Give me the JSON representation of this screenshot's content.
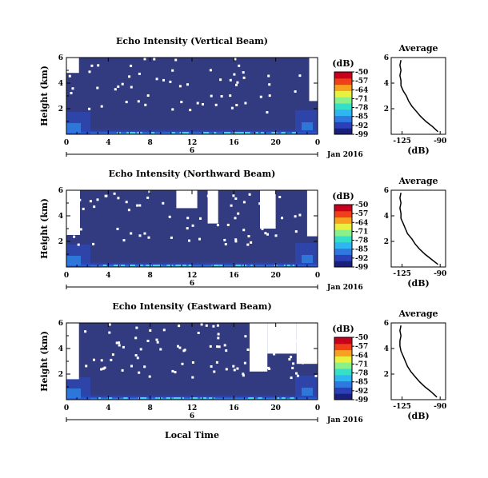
{
  "chart_data": {
    "type": "heatmap",
    "colorbar": {
      "label": "(dB)",
      "ticks": [
        "-50",
        "-57",
        "-64",
        "-71",
        "-78",
        "-85",
        "-92",
        "-99"
      ],
      "range": [
        -99,
        -50
      ],
      "colors": [
        "#1a1f7a",
        "#2a3fb8",
        "#2f78e0",
        "#2fb6f0",
        "#36e0c8",
        "#8af08a",
        "#e8f040",
        "#f8a020",
        "#f0401a",
        "#c8001e"
      ]
    },
    "date_label": "Jan 2016",
    "date_day": "6",
    "xlabel": "Local Time",
    "xticks": [
      "0",
      "4",
      "8",
      "12",
      "16",
      "20",
      "0"
    ],
    "xrange_hours": [
      0,
      24
    ],
    "ylabel": "Height (km)",
    "yticks": [
      "6",
      "4",
      "2"
    ],
    "yrange_km": [
      0,
      6
    ],
    "panels": [
      {
        "title": "Echo Intensity (Vertical Beam)",
        "avg_title": "Average",
        "avg_xlabel": "(dB)",
        "avg_xticks": [
          "-125",
          "-90"
        ],
        "avg_yticks": [
          "6",
          "4",
          "2"
        ],
        "avg_profile": {
          "height_km": [
            0.2,
            0.6,
            1.0,
            1.4,
            1.8,
            2.2,
            2.6,
            3.0,
            3.4,
            3.8,
            4.2,
            4.6,
            5.0,
            5.4,
            5.8
          ],
          "db": [
            -92,
            -97,
            -103,
            -108,
            -112,
            -116,
            -119,
            -121,
            -124,
            -126,
            -126,
            -127,
            -126,
            -127,
            -126
          ]
        },
        "white_regions_hours": [
          [
            23.2,
            24,
            2.6,
            6.0
          ],
          [
            0,
            1.2,
            4.8,
            6.0
          ]
        ]
      },
      {
        "title": "Echo Intensity (Northward Beam)",
        "avg_title": "Average",
        "avg_xlabel": "(dB)",
        "avg_xticks": [
          "-125",
          "-90"
        ],
        "avg_yticks": [
          "6",
          "4",
          "2"
        ],
        "avg_profile": {
          "height_km": [
            0.2,
            0.6,
            1.0,
            1.4,
            1.8,
            2.2,
            2.6,
            3.0,
            3.4,
            3.8,
            4.2,
            4.6,
            5.0,
            5.4,
            5.8
          ],
          "db": [
            -92,
            -98,
            -104,
            -109,
            -113,
            -116,
            -120,
            -122,
            -124,
            -126,
            -126,
            -127,
            -126,
            -127,
            -126
          ]
        },
        "white_regions_hours": [
          [
            0,
            1.3,
            2.5,
            6.0
          ],
          [
            23.0,
            24,
            2.4,
            6.0
          ],
          [
            18.5,
            20.0,
            3.0,
            6.0
          ],
          [
            13.5,
            14.5,
            3.4,
            6.0
          ],
          [
            10.5,
            12.5,
            4.6,
            6.0
          ]
        ]
      },
      {
        "title": "Echo Intensity (Eastward Beam)",
        "avg_title": "Average",
        "avg_xlabel": "(dB)",
        "avg_xticks": [
          "-125",
          "-90"
        ],
        "avg_yticks": [
          "6",
          "4",
          "2"
        ],
        "avg_profile": {
          "height_km": [
            0.2,
            0.6,
            1.0,
            1.4,
            1.8,
            2.2,
            2.6,
            3.0,
            3.4,
            3.8,
            4.2,
            4.6,
            5.0,
            5.4,
            5.8
          ],
          "db": [
            -93,
            -98,
            -104,
            -109,
            -113,
            -117,
            -120,
            -122,
            -124,
            -126,
            -127,
            -127,
            -126,
            -127,
            -126
          ]
        },
        "white_regions_hours": [
          [
            0,
            1.2,
            1.6,
            6.0
          ],
          [
            22.0,
            24,
            2.8,
            6.0
          ],
          [
            17.5,
            19.2,
            2.2,
            6.0
          ],
          [
            19.2,
            22.0,
            3.6,
            6.0
          ]
        ]
      }
    ]
  }
}
